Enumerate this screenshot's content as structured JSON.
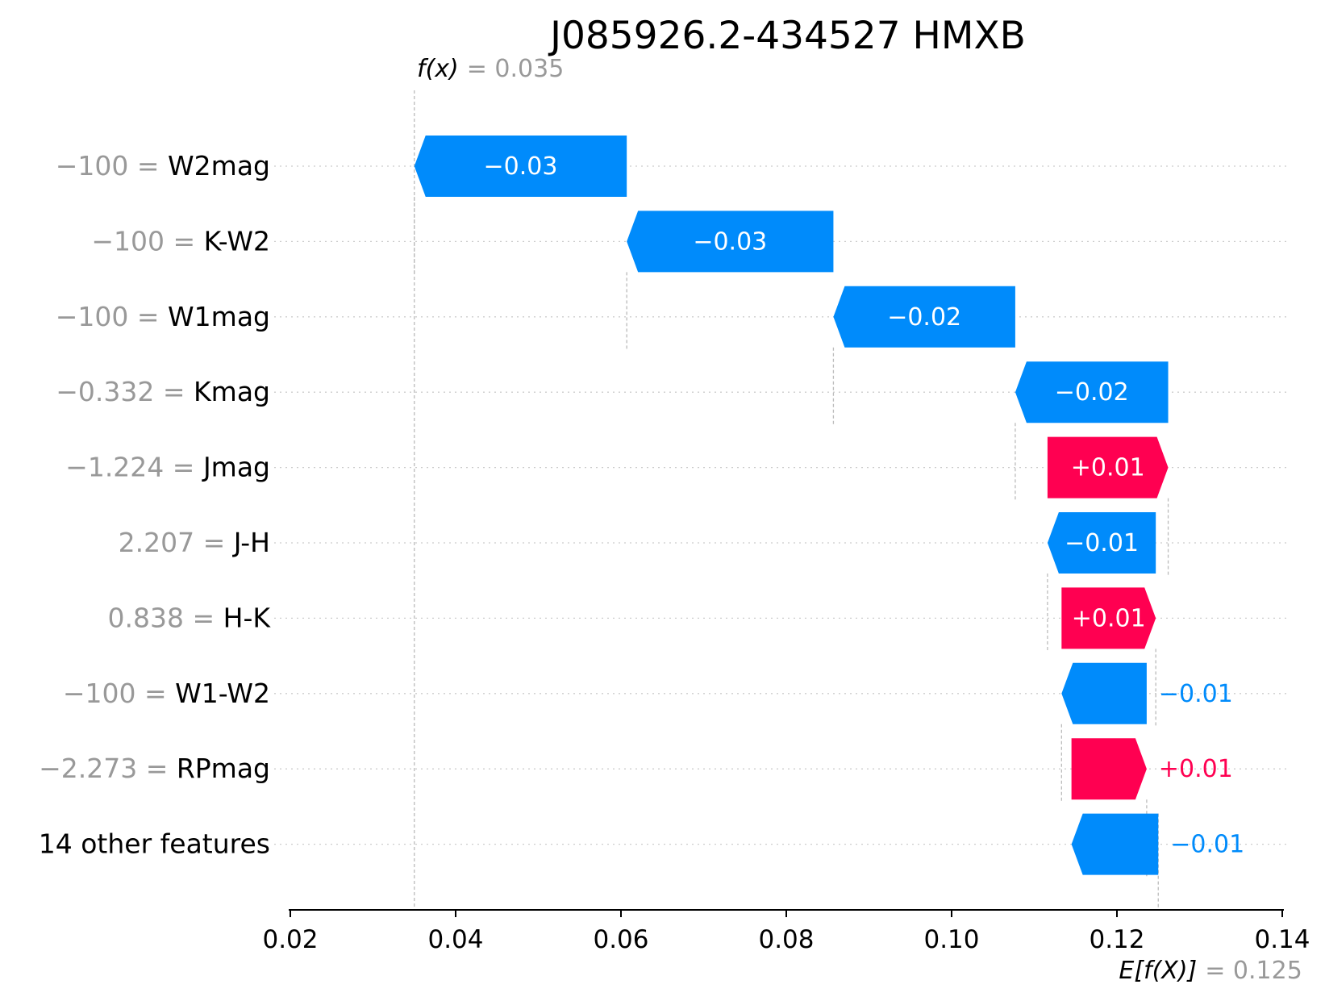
{
  "chart_data": {
    "type": "waterfall",
    "title": "J085926.2-434527 HMXB",
    "fx_label": "f(x)",
    "fx_value": "= 0.035",
    "ex_label": "E[f(X)]",
    "ex_value": "= 0.125",
    "base_value": 0.125,
    "output_value": 0.035,
    "xlim": [
      0.02,
      0.14
    ],
    "xticks": [
      0.02,
      0.04,
      0.06,
      0.08,
      0.1,
      0.12,
      0.14
    ],
    "xtick_labels": [
      "0.02",
      "0.04",
      "0.06",
      "0.08",
      "0.10",
      "0.12",
      "0.14"
    ],
    "features": [
      {
        "value": "−100",
        "name": "W2mag",
        "start": 0.0607,
        "end": 0.035,
        "label": "−0.03"
      },
      {
        "value": "−100",
        "name": "K-W2",
        "start": 0.0857,
        "end": 0.0607,
        "label": "−0.03"
      },
      {
        "value": "−100",
        "name": "W1mag",
        "start": 0.1077,
        "end": 0.0857,
        "label": "−0.02"
      },
      {
        "value": "−0.332",
        "name": "Kmag",
        "start": 0.1262,
        "end": 0.1077,
        "label": "−0.02"
      },
      {
        "value": "−1.224",
        "name": "Jmag",
        "start": 0.1116,
        "end": 0.1262,
        "label": "+0.01"
      },
      {
        "value": "2.207",
        "name": "J-H",
        "start": 0.1247,
        "end": 0.1116,
        "label": "−0.01"
      },
      {
        "value": "0.838",
        "name": "H-K",
        "start": 0.1133,
        "end": 0.1247,
        "label": "+0.01"
      },
      {
        "value": "−100",
        "name": "W1-W2",
        "start": 0.1236,
        "end": 0.1133,
        "label": "−0.01"
      },
      {
        "value": "−2.273",
        "name": "RPmag",
        "start": 0.1145,
        "end": 0.1236,
        "label": "+0.01"
      },
      {
        "value": "",
        "name": "14 other features",
        "start": 0.125,
        "end": 0.1145,
        "label": "−0.01"
      }
    ],
    "colors": {
      "positive": "#ff0051",
      "negative": "#008bfb",
      "axis": "#000000",
      "muted": "#999999"
    }
  }
}
